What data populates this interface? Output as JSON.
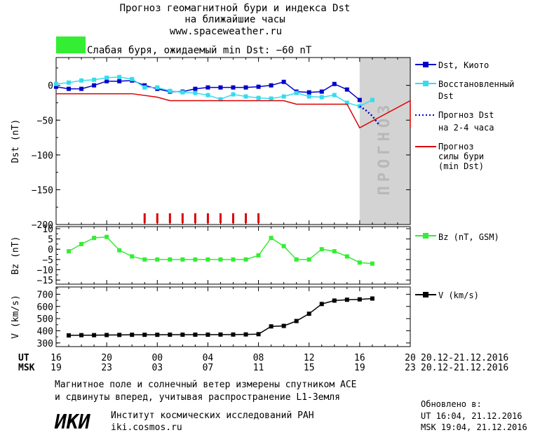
{
  "header": {
    "title_line1": "Прогноз геомагнитной бури и индекса Dst",
    "title_line2": "на ближайшие часы",
    "url": "www.spaceweather.ru",
    "storm_status": "Слабая буря, ожидаемый min Dst: −60 nT",
    "storm_color": "#33ee33"
  },
  "forecast_band_label": "ПРОГНОЗ",
  "legend": {
    "dst_kyoto": "Dst, Киото",
    "restored_1": "Восстановленный",
    "restored_2": "Dst",
    "forecast_1": "Прогноз Dst",
    "forecast_2": "на 2-4 часа",
    "storm_1": "Прогноз",
    "storm_2": "силы бури",
    "storm_3": "(min Dst)",
    "bz": "Bz (nT, GSM)",
    "v": "V (km/s)"
  },
  "axes": {
    "ut_label": "UT",
    "msk_label": "MSK",
    "ut_ticks": [
      "16",
      "20",
      "00",
      "04",
      "08",
      "12",
      "16",
      "20"
    ],
    "msk_ticks": [
      "19",
      "23",
      "03",
      "07",
      "11",
      "15",
      "19",
      "23"
    ],
    "date_range_ut": "20.12-21.12.2016",
    "date_range_msk": "20.12-21.12.2016"
  },
  "footer": {
    "note_1": "Магнитное поле и солнечный ветер измерены спутником ACE",
    "note_2": "и сдвинуты вперед, учитывая распространение L1-Земля",
    "institute": "Институт космических исследований РАН",
    "site": "iki.cosmos.ru",
    "logo": "ИКИ",
    "updated_label": "Обновлено в:",
    "updated_ut": "UT  16:04, 21.12.2016",
    "updated_msk": "MSK 19:04, 21.12.2016"
  },
  "chart_data": [
    {
      "type": "line",
      "ylabel": "Dst (nT)",
      "ylim": [
        -200,
        40
      ],
      "yticks": [
        0,
        -50,
        -100,
        -150,
        -200
      ],
      "xlim_hours": [
        16,
        44
      ],
      "forecast_band": [
        40,
        44
      ],
      "series": [
        {
          "name": "Dst, Киото",
          "color": "#0000cc",
          "x": [
            16,
            17,
            18,
            19,
            20,
            21,
            22,
            23,
            24,
            25,
            26,
            27,
            28,
            29,
            30,
            31,
            32,
            33,
            34,
            35,
            36,
            37,
            38,
            39,
            40
          ],
          "values": [
            -2,
            -5,
            -5,
            0,
            6,
            6,
            7,
            0,
            -5,
            -9,
            -9,
            -5,
            -3,
            -3,
            -3,
            -3,
            -2,
            0,
            5,
            -9,
            -10,
            -9,
            2,
            -6,
            -21
          ]
        },
        {
          "name": "Восстановленный Dst",
          "color": "#33ddee",
          "x": [
            16,
            17,
            18,
            19,
            20,
            21,
            22,
            23,
            24,
            25,
            26,
            27,
            28,
            29,
            30,
            31,
            32,
            33,
            34,
            35,
            36,
            37,
            38,
            39,
            40,
            41
          ],
          "values": [
            2,
            4,
            7,
            8,
            11,
            12,
            9,
            -3,
            -3,
            -8,
            -10,
            -11,
            -14,
            -20,
            -13,
            -16,
            -18,
            -19,
            -16,
            -11,
            -16,
            -17,
            -14,
            -25,
            -30,
            -21
          ]
        },
        {
          "name": "Прогноз Dst на 2-4 часа",
          "color": "#0000cc",
          "dash": true,
          "x": [
            40,
            40.5,
            41,
            41.5
          ],
          "values": [
            -30,
            -36,
            -44,
            -56
          ]
        },
        {
          "name": "Прогноз силы бури (min Dst)",
          "color": "#dd0000",
          "step": true,
          "x": [
            16,
            22,
            24,
            25,
            44
          ],
          "values": [
            -12,
            -12,
            -17,
            -22,
            -22
          ],
          "extra": [
            [
              34,
              -22
            ],
            [
              35,
              -27
            ],
            [
              39,
              -27
            ],
            [
              40,
              -61
            ],
            [
              44,
              -61
            ]
          ]
        }
      ],
      "storm_ticks_hours": [
        23,
        24,
        25,
        26,
        27,
        28,
        29,
        30,
        31,
        32
      ]
    },
    {
      "type": "line",
      "ylabel": "Bz (nT)",
      "ylim": [
        -17,
        11
      ],
      "yticks": [
        10,
        5,
        0,
        -5,
        -10,
        -15
      ],
      "series": [
        {
          "name": "Bz (nT, GSM)",
          "color": "#33ee33",
          "x": [
            17,
            18,
            19,
            20,
            21,
            22,
            23,
            24,
            25,
            26,
            27,
            28,
            29,
            30,
            31,
            32,
            33,
            34,
            35,
            36,
            37,
            38,
            39,
            40,
            41
          ],
          "values": [
            -1,
            2.5,
            5.5,
            6,
            -0.5,
            -3.5,
            -5,
            -5,
            -5,
            -5,
            -5,
            -5,
            -5,
            -5,
            -5,
            -3,
            5.5,
            1.5,
            -5,
            -5,
            0,
            -1,
            -3.5,
            -6.5,
            -7
          ]
        }
      ]
    },
    {
      "type": "line",
      "ylabel": "V (km/s)",
      "ylim": [
        270,
        760
      ],
      "yticks": [
        700,
        600,
        500,
        400,
        300
      ],
      "series": [
        {
          "name": "V (km/s)",
          "color": "#000000",
          "x": [
            17,
            18,
            19,
            20,
            21,
            22,
            23,
            24,
            25,
            26,
            27,
            28,
            29,
            30,
            31,
            32,
            33,
            34,
            35,
            36,
            37,
            38,
            39,
            40,
            41
          ],
          "values": [
            362,
            364,
            364,
            365,
            366,
            367,
            367,
            367,
            368,
            368,
            368,
            368,
            369,
            369,
            370,
            372,
            436,
            440,
            480,
            540,
            620,
            648,
            655,
            658,
            665
          ]
        }
      ]
    }
  ]
}
